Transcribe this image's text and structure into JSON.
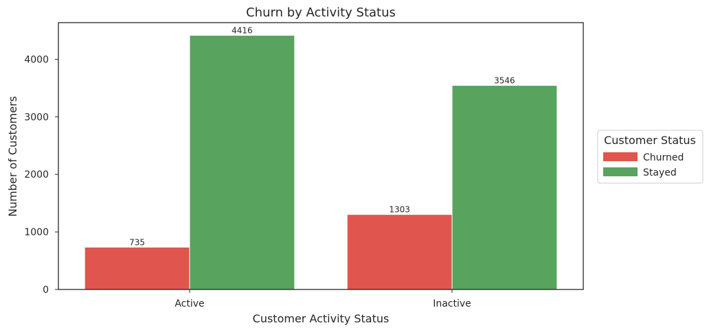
{
  "chart_data": {
    "type": "bar",
    "title": "Churn by Activity Status",
    "xlabel": "Customer Activity Status",
    "ylabel": "Number of Customers",
    "categories": [
      "Active",
      "Inactive"
    ],
    "series": [
      {
        "name": "Churned",
        "values": [
          735,
          1303
        ],
        "color": "#e0554d"
      },
      {
        "name": "Stayed",
        "values": [
          4416,
          3546
        ],
        "color": "#58a35d"
      }
    ],
    "ylim": [
      0,
      4637
    ],
    "yticks": [
      0,
      1000,
      2000,
      3000,
      4000
    ],
    "grid": false,
    "legend": {
      "title": "Customer Status",
      "placement": "right"
    }
  }
}
